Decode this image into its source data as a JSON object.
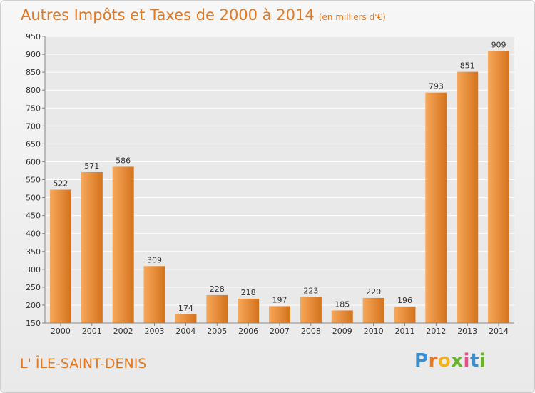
{
  "title": "Autres Impôts et Taxes de 2000 à 2014",
  "subtitle": "(en milliers d'€)",
  "location": "L' ÎLE-SAINT-DENIS",
  "logo": {
    "letters": [
      "P",
      "r",
      "o",
      "x",
      "i",
      "t",
      "i"
    ],
    "colors": [
      "#3a8fd1",
      "#e8781e",
      "#f2b21a",
      "#6ab42d",
      "#e84c8b",
      "#3a8fd1",
      "#6ab42d"
    ]
  },
  "colors": {
    "bar_light": "#f7a85a",
    "bar_dark": "#d4721c",
    "title": "#e8781e",
    "grid": "#ffffff"
  },
  "chart_data": {
    "type": "bar",
    "categories": [
      "2000",
      "2001",
      "2002",
      "2003",
      "2004",
      "2005",
      "2006",
      "2007",
      "2008",
      "2009",
      "2010",
      "2011",
      "2012",
      "2013",
      "2014"
    ],
    "values": [
      522,
      571,
      586,
      309,
      174,
      228,
      218,
      197,
      223,
      185,
      220,
      196,
      793,
      851,
      909
    ],
    "ylim": [
      150,
      950
    ],
    "yticks": [
      150,
      200,
      250,
      300,
      350,
      400,
      450,
      500,
      550,
      600,
      650,
      700,
      750,
      800,
      850,
      900,
      950
    ],
    "grid": true,
    "legend": "none"
  }
}
